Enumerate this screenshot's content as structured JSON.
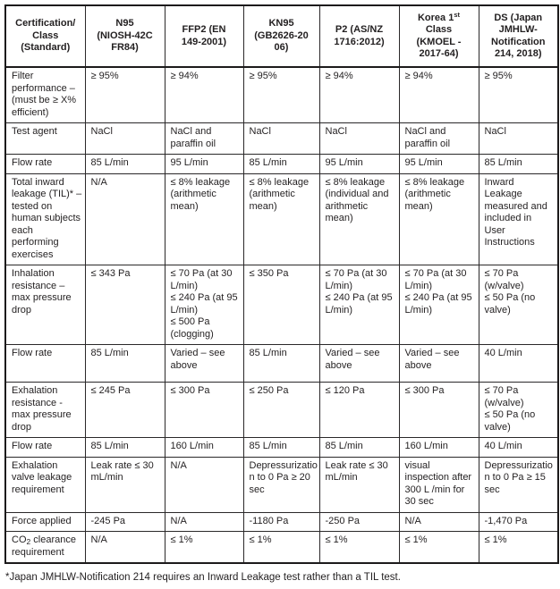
{
  "table": {
    "header": [
      "Certification/\nClass\n(Standard)",
      "N95\n(NIOSH-42C\nFR84)",
      "FFP2 (EN\n149-2001)",
      "KN95\n(GB2626-20\n06)",
      "P2 (AS/NZ\n1716:2012)",
      null,
      "DS (Japan\nJMHLW-\nNotification\n214, 2018)"
    ],
    "korea_header": {
      "prefix": "Korea 1",
      "sup": "st",
      "rest": "\nClass\n(KMOEL -\n2017-64)"
    },
    "rows": [
      {
        "label": "Filter\nperformance –\n(must be ≥ X%\nefficient)",
        "cells": [
          "≥ 95%",
          "≥ 94%",
          "≥ 95%",
          "≥ 94%",
          "≥ 94%",
          "≥ 95%"
        ]
      },
      {
        "label": "Test agent",
        "cells": [
          "NaCl",
          "NaCl and\nparaffin oil",
          "NaCl",
          "NaCl",
          "NaCl and\nparaffin oil",
          "NaCl"
        ]
      },
      {
        "label": "Flow rate",
        "cells": [
          "85 L/min",
          "95 L/min",
          "85 L/min",
          "95 L/min",
          "95 L/min",
          "85 L/min"
        ]
      },
      {
        "label": "Total inward\nleakage (TIL)* –\ntested on\nhuman subjects\neach\nperforming\nexercises",
        "cells": [
          "N/A",
          "≤ 8% leakage\n(arithmetic\nmean)",
          "≤ 8% leakage\n(arithmetic\nmean)",
          "≤ 8% leakage\n(individual and\narithmetic\nmean)",
          "≤ 8% leakage\n(arithmetic\nmean)",
          "Inward Leakage\nmeasured and\nincluded in User\nInstructions"
        ]
      },
      {
        "label": "Inhalation\nresistance –\nmax pressure\ndrop",
        "cells": [
          "≤ 343 Pa",
          "≤ 70 Pa (at 30\nL/min)\n≤ 240 Pa (at 95\nL/min)\n≤ 500 Pa\n(clogging)",
          "≤ 350 Pa",
          "≤ 70 Pa (at 30\nL/min)\n≤ 240 Pa (at 95\nL/min)",
          "≤ 70 Pa (at 30\nL/min)\n≤ 240 Pa (at 95\nL/min)",
          "≤ 70 Pa\n(w/valve)\n≤ 50 Pa (no\nvalve)"
        ]
      },
      {
        "label": "Flow rate",
        "cells": [
          "85 L/min",
          "Varied – see\nabove",
          "85 L/min",
          "Varied – see\nabove",
          "Varied – see\nabove",
          "40 L/min"
        ]
      },
      {
        "label": "Exhalation\nresistance -\nmax pressure\ndrop",
        "cells": [
          "≤ 245 Pa",
          "≤ 300 Pa",
          "≤ 250 Pa",
          "≤ 120 Pa",
          "≤ 300 Pa",
          "≤ 70 Pa\n(w/valve)\n≤ 50 Pa (no\nvalve)"
        ]
      },
      {
        "label": "Flow rate",
        "cells": [
          "85 L/min",
          "160 L/min",
          "85 L/min",
          "85 L/min",
          "160 L/min",
          "40 L/min"
        ]
      },
      {
        "label": "Exhalation\nvalve leakage\nrequirement",
        "cells": [
          "Leak rate ≤ 30\nmL/min",
          "N/A",
          "Depressurizatio\nn to 0 Pa ≥ 20\nsec",
          "Leak rate ≤ 30\nmL/min",
          "visual\ninspection after\n300 L /min for\n30 sec",
          "Depressurizatio\nn to 0 Pa ≥ 15\nsec"
        ]
      },
      {
        "label": "Force applied",
        "cells": [
          "-245 Pa",
          "N/A",
          "-1180 Pa",
          "-250 Pa",
          "N/A",
          "-1,470 Pa"
        ]
      },
      {
        "label_pre": "CO",
        "label_sub": "2",
        "label_post": " clearance\nrequirement",
        "cells": [
          "N/A",
          "≤ 1%",
          "≤ 1%",
          "≤ 1%",
          "≤ 1%",
          "≤ 1%"
        ]
      }
    ]
  },
  "footnote": "*Japan JMHLW-Notification 214 requires an Inward Leakage test rather than a TIL test.",
  "colors": {
    "text": "#221f20",
    "border": "#1c1a1b",
    "background": "#ffffff"
  }
}
